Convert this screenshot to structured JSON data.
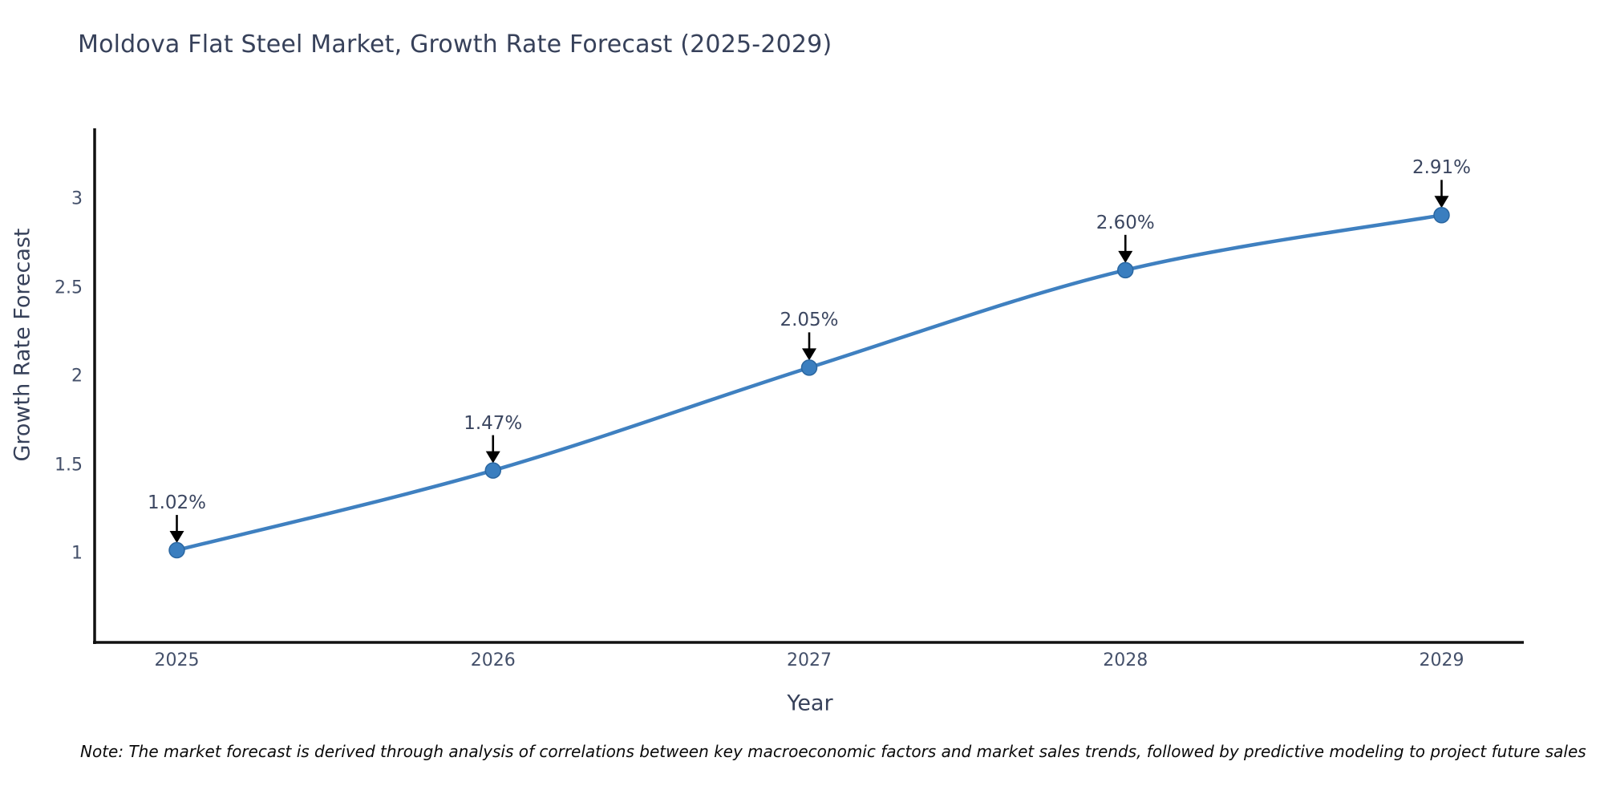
{
  "title": "Moldova Flat Steel Market, Growth Rate Forecast (2025-2029)",
  "note": "Note: The market forecast is derived through analysis of correlations between key macroeconomic factors and market sales trends, followed by predictive modeling to project future sales",
  "chart_data": {
    "type": "line",
    "title": "Moldova Flat Steel Market, Growth Rate Forecast (2025-2029)",
    "xlabel": "Year",
    "ylabel": "Growth Rate Forecast",
    "x": [
      2025,
      2026,
      2027,
      2028,
      2029
    ],
    "series": [
      {
        "name": "Growth Rate Forecast",
        "values": [
          1.02,
          1.47,
          2.05,
          2.6,
          2.91
        ]
      }
    ],
    "point_labels": [
      "1.02%",
      "1.47%",
      "2.05%",
      "2.60%",
      "2.91%"
    ],
    "xtick_labels": [
      "2025",
      "2026",
      "2027",
      "2028",
      "2029"
    ],
    "ytick_labels": [
      "1",
      "1.5",
      "2",
      "2.5",
      "3"
    ],
    "ytick_values": [
      1,
      1.5,
      2,
      2.5,
      3
    ],
    "xlim": [
      2024.74,
      2029.26
    ],
    "ylim": [
      0.5,
      3.4
    ],
    "grid": false,
    "legend": "none",
    "line_shape": "spline",
    "line_color": "#3f80c0",
    "marker_color": "#3a7ebf",
    "marker_edge_color": "#2a66a0",
    "axis_color": "#111111",
    "annotation_arrow_color": "#000000"
  }
}
